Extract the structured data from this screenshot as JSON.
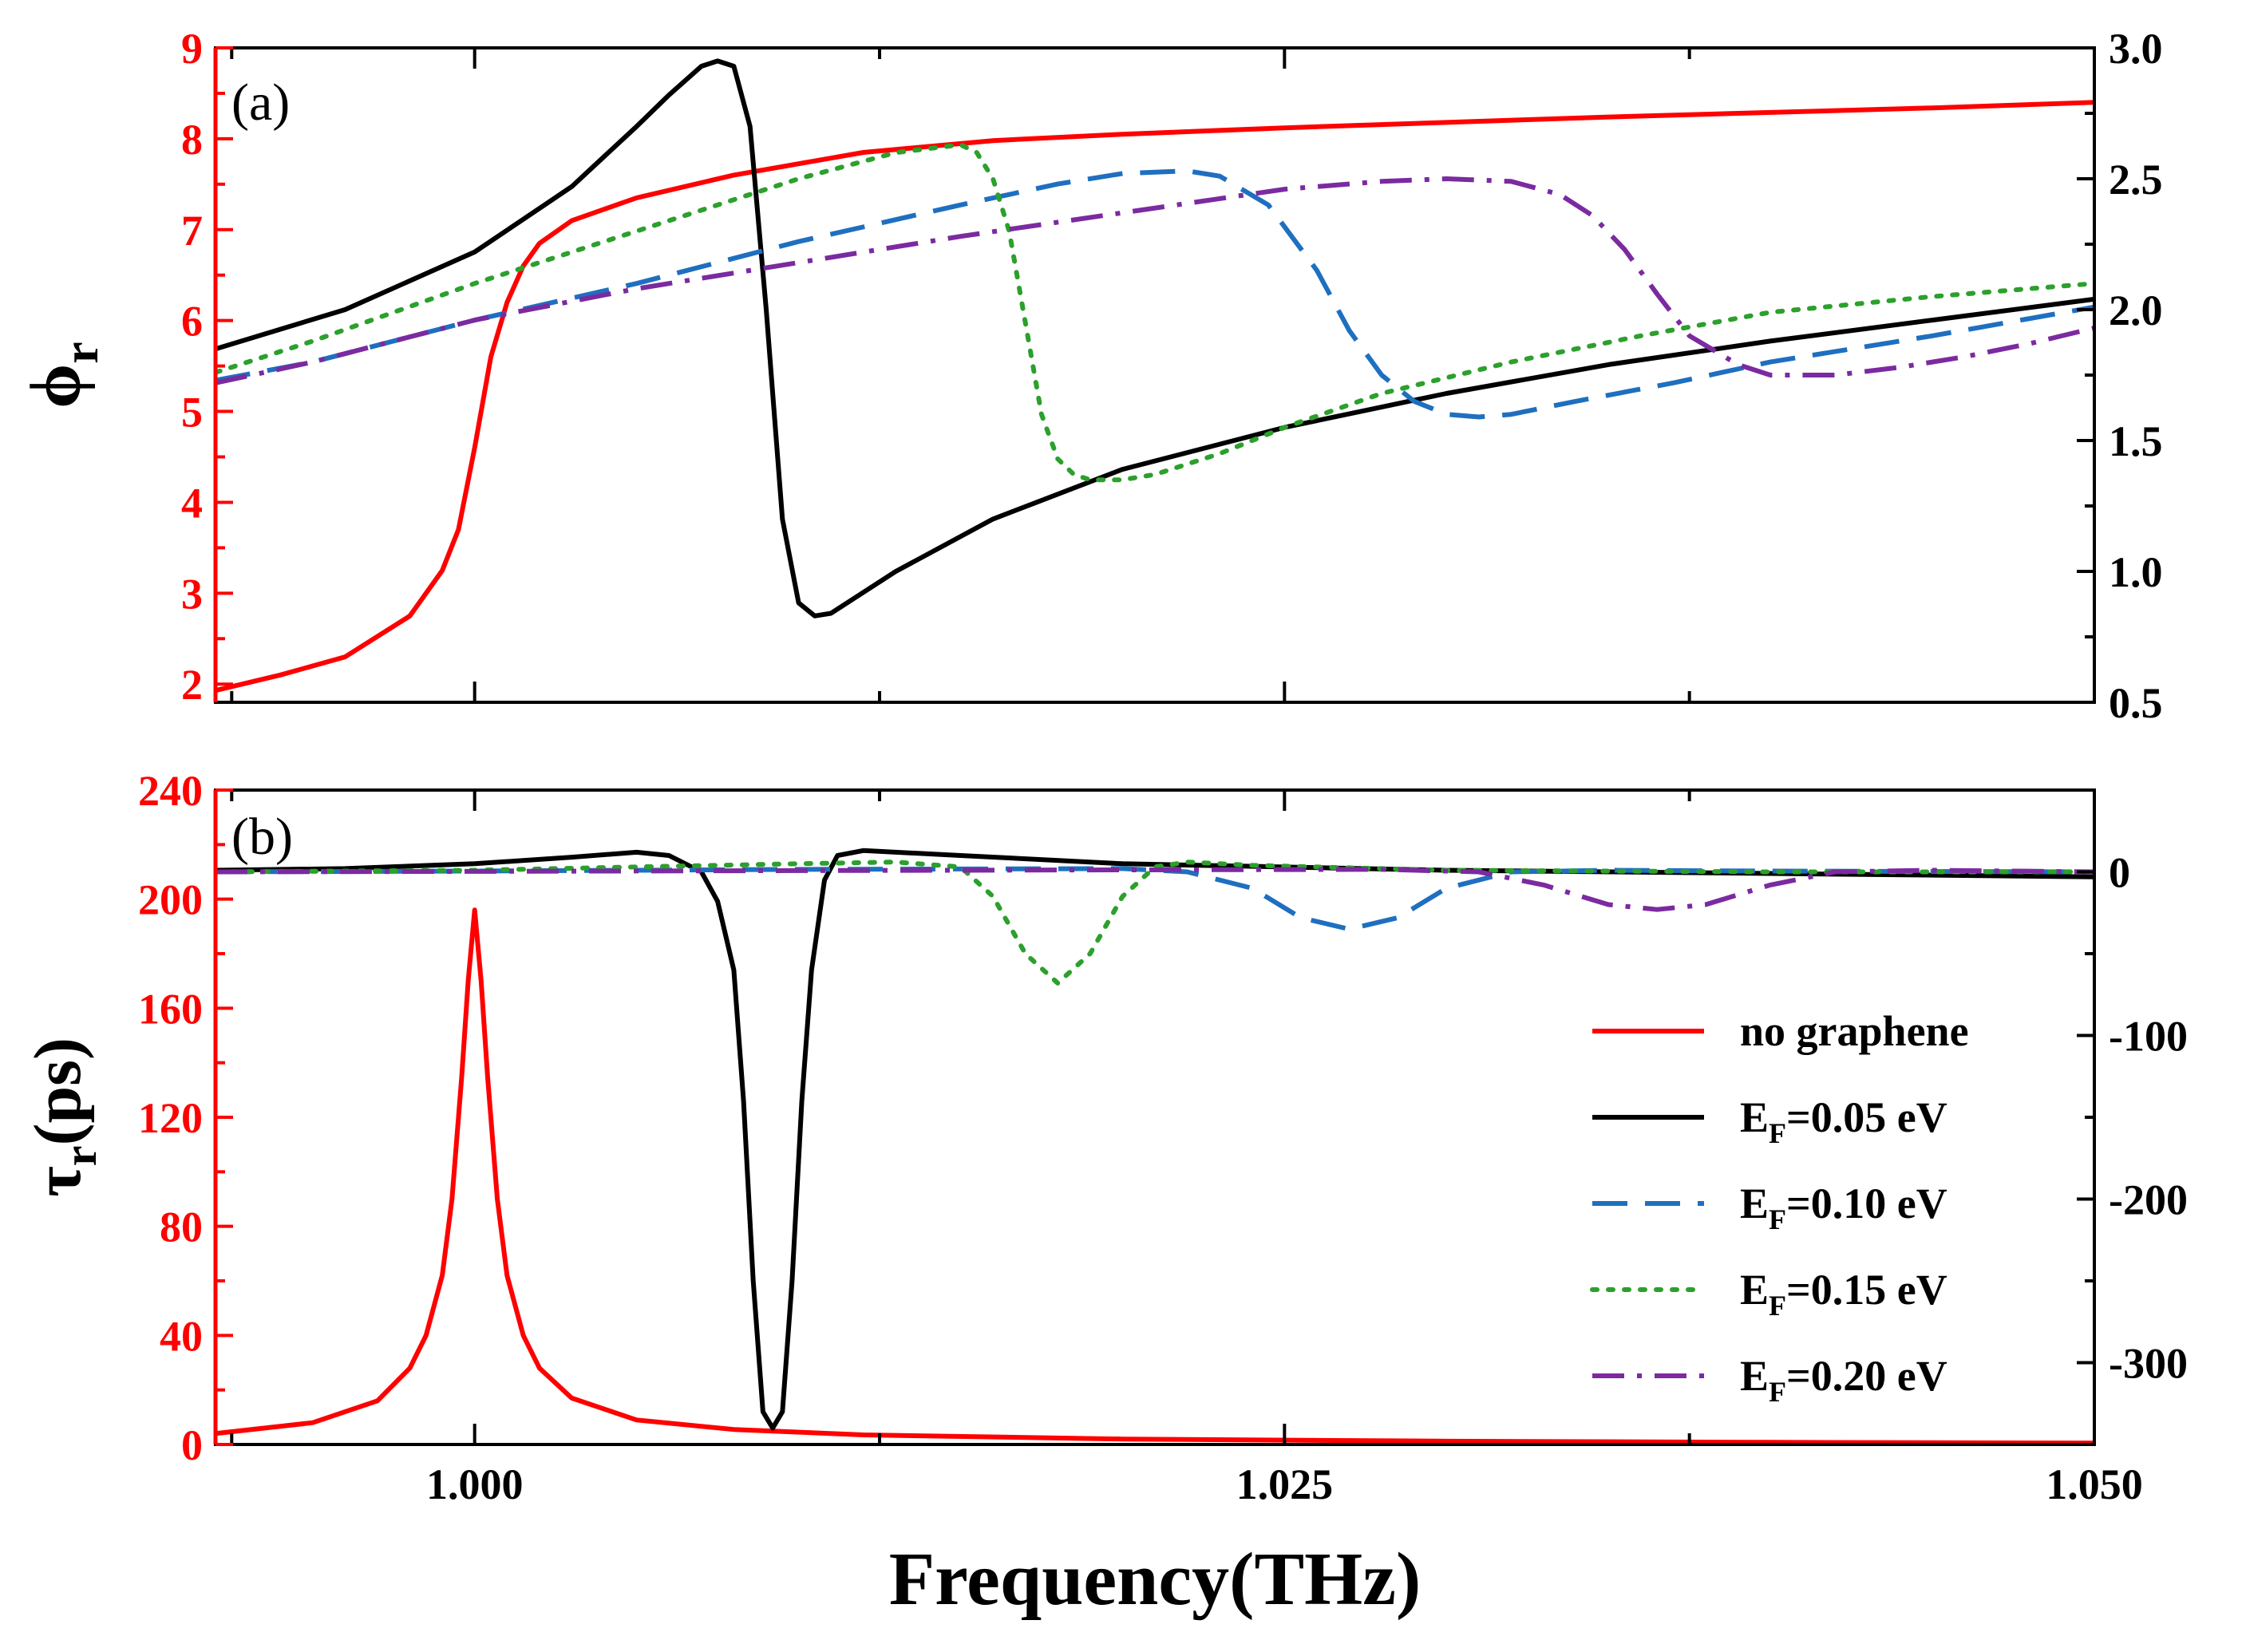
{
  "chart_data": [
    {
      "type": "line",
      "panel_label": "(a)",
      "xlabel": "Frequency(THz)",
      "xlim": [
        0.992,
        1.05
      ],
      "x_ticks": [
        1.0,
        1.025,
        1.05
      ],
      "x_tick_labels": [
        "1.000",
        "1.025",
        "1.050"
      ],
      "ylabel_left": "ϕr",
      "ylabel_left_main": "ϕ",
      "ylabel_left_sub": "r",
      "ylim_left": [
        1.8,
        9.0
      ],
      "y_ticks_left": [
        2,
        3,
        4,
        5,
        6,
        7,
        8,
        9
      ],
      "y_tick_labels_left": [
        "2",
        "3",
        "4",
        "5",
        "6",
        "7",
        "8",
        "9"
      ],
      "ylim_right": [
        0.5,
        3.0
      ],
      "y_ticks_right": [
        0.5,
        1.0,
        1.5,
        2.0,
        2.5,
        3.0
      ],
      "y_tick_labels_right": [
        "0.5",
        "1.0",
        "1.5",
        "2.0",
        "2.5",
        "3.0"
      ],
      "series": [
        {
          "name": "no graphene",
          "axis": "left",
          "color": "#ff0000",
          "dash": "solid",
          "x": [
            0.992,
            0.994,
            0.996,
            0.998,
            0.999,
            0.9995,
            1.0,
            1.0005,
            1.001,
            1.0015,
            1.002,
            1.003,
            1.005,
            1.008,
            1.012,
            1.016,
            1.02,
            1.025,
            1.03,
            1.035,
            1.04,
            1.045,
            1.05
          ],
          "y": [
            1.93,
            2.1,
            2.3,
            2.75,
            3.25,
            3.7,
            4.6,
            5.6,
            6.2,
            6.6,
            6.85,
            7.1,
            7.35,
            7.6,
            7.85,
            7.98,
            8.05,
            8.12,
            8.18,
            8.24,
            8.29,
            8.34,
            8.4
          ]
        },
        {
          "name": "E_F=0.05 eV",
          "axis": "right",
          "color": "#000000",
          "dash": "solid",
          "x": [
            0.992,
            0.996,
            1.0,
            1.003,
            1.005,
            1.006,
            1.007,
            1.0075,
            1.008,
            1.0085,
            1.009,
            1.0095,
            1.01,
            1.0105,
            1.011,
            1.0115,
            1.013,
            1.016,
            1.02,
            1.025,
            1.03,
            1.035,
            1.04,
            1.045,
            1.05
          ],
          "y": [
            1.85,
            2.0,
            2.22,
            2.47,
            2.7,
            2.82,
            2.93,
            2.95,
            2.93,
            2.7,
            2.0,
            1.2,
            0.88,
            0.83,
            0.84,
            0.88,
            1.0,
            1.2,
            1.39,
            1.55,
            1.68,
            1.79,
            1.88,
            1.96,
            2.04
          ]
        },
        {
          "name": "E_F=0.10 eV",
          "axis": "right",
          "color": "#1f6fc0",
          "dash": "dash",
          "x": [
            0.992,
            0.995,
            1.0,
            1.005,
            1.01,
            1.015,
            1.018,
            1.02,
            1.022,
            1.023,
            1.0245,
            1.026,
            1.027,
            1.028,
            1.029,
            1.03,
            1.031,
            1.032,
            1.034,
            1.037,
            1.04,
            1.045,
            1.05
          ],
          "y": [
            1.73,
            1.8,
            1.96,
            2.1,
            2.26,
            2.4,
            2.48,
            2.52,
            2.53,
            2.51,
            2.4,
            2.15,
            1.92,
            1.75,
            1.65,
            1.6,
            1.59,
            1.6,
            1.65,
            1.72,
            1.8,
            1.9,
            2.01
          ]
        },
        {
          "name": "E_F=0.15 eV",
          "axis": "right",
          "color": "#2ca02c",
          "dash": "dot",
          "x": [
            0.992,
            0.995,
            1.0,
            1.005,
            1.01,
            1.013,
            1.015,
            1.0155,
            1.016,
            1.0165,
            1.017,
            1.0175,
            1.018,
            1.0185,
            1.019,
            1.02,
            1.021,
            1.023,
            1.025,
            1.028,
            1.032,
            1.036,
            1.04,
            1.045,
            1.05
          ],
          "y": [
            1.76,
            1.88,
            2.1,
            2.3,
            2.5,
            2.6,
            2.63,
            2.6,
            2.5,
            2.3,
            1.95,
            1.6,
            1.43,
            1.37,
            1.35,
            1.35,
            1.37,
            1.45,
            1.55,
            1.68,
            1.8,
            1.9,
            1.99,
            2.05,
            2.1
          ]
        },
        {
          "name": "E_F=0.20 eV",
          "axis": "right",
          "color": "#7b2aa0",
          "dash": "dashdot",
          "x": [
            0.992,
            0.995,
            1.0,
            1.005,
            1.01,
            1.015,
            1.02,
            1.025,
            1.028,
            1.03,
            1.032,
            1.0335,
            1.0345,
            1.0355,
            1.0365,
            1.0375,
            1.039,
            1.04,
            1.042,
            1.044,
            1.046,
            1.048,
            1.05
          ],
          "y": [
            1.72,
            1.8,
            1.96,
            2.08,
            2.18,
            2.28,
            2.37,
            2.46,
            2.49,
            2.5,
            2.49,
            2.44,
            2.36,
            2.23,
            2.06,
            1.9,
            1.79,
            1.75,
            1.75,
            1.78,
            1.82,
            1.87,
            1.93
          ]
        }
      ]
    },
    {
      "type": "line",
      "panel_label": "(b)",
      "xlabel": "Frequency(THz)",
      "xlim": [
        0.992,
        1.05
      ],
      "x_ticks": [
        1.0,
        1.025,
        1.05
      ],
      "x_tick_labels": [
        "1.000",
        "1.025",
        "1.050"
      ],
      "ylabel_left": "τr(ps)",
      "ylabel_left_main": "τ",
      "ylabel_left_sub": "r",
      "ylabel_left_suffix": "(ps)",
      "ylim_left": [
        0,
        240
      ],
      "y_ticks_left": [
        0,
        40,
        80,
        120,
        160,
        200,
        240
      ],
      "y_tick_labels_left": [
        "0",
        "40",
        "80",
        "120",
        "160",
        "200",
        "240"
      ],
      "ylim_right": [
        -350,
        50
      ],
      "y_ticks_right": [
        -300,
        -200,
        -100,
        0
      ],
      "y_tick_labels_right": [
        "-300",
        "-200",
        "-100",
        "0"
      ],
      "series": [
        {
          "name": "no graphene",
          "axis": "left",
          "color": "#ff0000",
          "dash": "solid",
          "x": [
            0.992,
            0.995,
            0.997,
            0.998,
            0.9985,
            0.999,
            0.9993,
            0.9996,
            0.9998,
            1.0,
            1.0002,
            1.0004,
            1.0007,
            1.001,
            1.0015,
            1.002,
            1.003,
            1.005,
            1.008,
            1.012,
            1.02,
            1.03,
            1.04,
            1.05
          ],
          "y": [
            4,
            8,
            16,
            28,
            40,
            62,
            90,
            135,
            170,
            196,
            170,
            135,
            90,
            62,
            40,
            28,
            17,
            9,
            5.5,
            3.5,
            2,
            1.2,
            0.8,
            0.5
          ]
        },
        {
          "name": "E_F=0.05 eV",
          "axis": "right",
          "color": "#000000",
          "dash": "solid",
          "x": [
            0.992,
            0.996,
            1.0,
            1.003,
            1.005,
            1.006,
            1.007,
            1.0075,
            1.008,
            1.0083,
            1.0086,
            1.0089,
            1.0092,
            1.0095,
            1.0098,
            1.0101,
            1.0104,
            1.0108,
            1.0112,
            1.012,
            1.015,
            1.02,
            1.03,
            1.04,
            1.05
          ],
          "y": [
            1,
            2,
            5,
            9,
            12,
            10,
            0,
            -18,
            -60,
            -140,
            -250,
            -330,
            -340,
            -330,
            -250,
            -140,
            -60,
            -5,
            10,
            13,
            10,
            5,
            1,
            -1,
            -3
          ]
        },
        {
          "name": "E_F=0.10 eV",
          "axis": "right",
          "color": "#1f6fc0",
          "dash": "dash",
          "x": [
            0.992,
            1.0,
            1.01,
            1.02,
            1.022,
            1.024,
            1.0255,
            1.027,
            1.0285,
            1.03,
            1.032,
            1.035,
            1.04,
            1.05
          ],
          "y": [
            0,
            0.5,
            1.5,
            2,
            0,
            -10,
            -28,
            -35,
            -28,
            -10,
            0,
            1,
            0.5,
            0
          ]
        },
        {
          "name": "E_F=0.15 eV",
          "axis": "right",
          "color": "#2ca02c",
          "dash": "dot",
          "x": [
            0.992,
            1.0,
            1.005,
            1.01,
            1.013,
            1.015,
            1.016,
            1.017,
            1.018,
            1.019,
            1.02,
            1.021,
            1.022,
            1.024,
            1.03,
            1.04,
            1.05
          ],
          "y": [
            0,
            1,
            3,
            5,
            6,
            3,
            -15,
            -50,
            -68,
            -50,
            -15,
            3,
            6,
            4,
            1,
            0,
            0
          ]
        },
        {
          "name": "E_F=0.20 eV",
          "axis": "right",
          "color": "#7b2aa0",
          "dash": "dashdot",
          "x": [
            0.992,
            1.0,
            1.01,
            1.02,
            1.028,
            1.031,
            1.033,
            1.035,
            1.0365,
            1.038,
            1.04,
            1.042,
            1.045,
            1.05
          ],
          "y": [
            0,
            0.3,
            0.8,
            1.2,
            1.5,
            0,
            -8,
            -20,
            -23,
            -20,
            -8,
            0,
            1,
            0
          ]
        }
      ],
      "legend_position": "lower-right"
    }
  ]
}
